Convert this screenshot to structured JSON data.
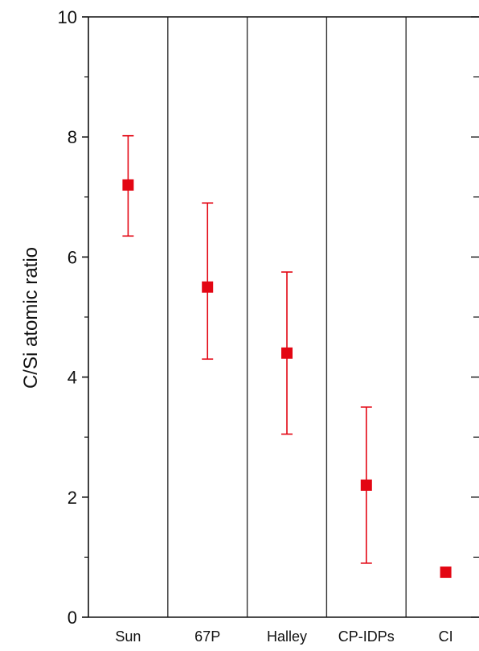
{
  "chart_data": {
    "type": "scatter",
    "title": "",
    "xlabel": "",
    "ylabel": "C/Si atomic ratio",
    "ylim": [
      0,
      10
    ],
    "yticks": [
      0,
      2,
      4,
      6,
      8,
      10
    ],
    "categories": [
      "Sun",
      "67P",
      "Halley",
      "CP-IDPs",
      "CI"
    ],
    "values": [
      7.2,
      5.5,
      4.4,
      2.2,
      0.75
    ],
    "error_low": [
      6.35,
      4.3,
      3.05,
      0.9,
      null
    ],
    "error_high": [
      8.02,
      6.9,
      5.75,
      3.5,
      null
    ],
    "marker": "square",
    "grid": false,
    "category_dividers": true,
    "colors": {
      "marker": "#e30613",
      "axis": "#111111",
      "divider": "#333333"
    }
  }
}
